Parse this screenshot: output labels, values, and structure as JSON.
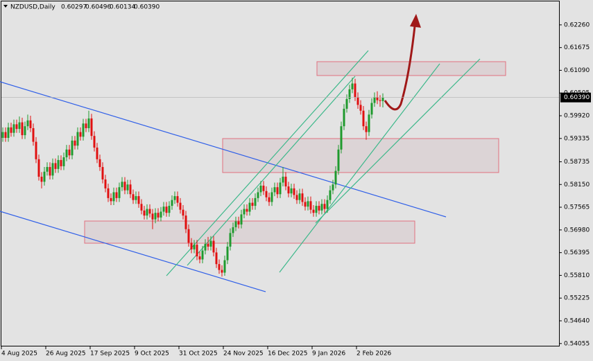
{
  "chart_data": {
    "type": "candlestick",
    "symbol": "NZDUSD,Daily",
    "header_ohlc": [
      "0.60297",
      "0.60496",
      "0.60134",
      "0.60390"
    ],
    "last_price": {
      "value": 0.6039,
      "label": "0.60390"
    },
    "up_color": "#1f9a2e",
    "down_color": "#e01010",
    "ylim": [
      0.5398,
      0.629
    ],
    "yticks": [
      {
        "value": 0.6226,
        "label": "0.62260"
      },
      {
        "value": 0.61675,
        "label": "0.61675"
      },
      {
        "value": 0.6109,
        "label": "0.61090"
      },
      {
        "value": 0.60505,
        "label": "0.60505"
      },
      {
        "value": 0.5992,
        "label": "0.59920"
      },
      {
        "value": 0.59335,
        "label": "0.59335"
      },
      {
        "value": 0.58735,
        "label": "0.58735"
      },
      {
        "value": 0.5815,
        "label": "0.58150"
      },
      {
        "value": 0.57565,
        "label": "0.57565"
      },
      {
        "value": 0.5698,
        "label": "0.56980"
      },
      {
        "value": 0.56395,
        "label": "0.56395"
      },
      {
        "value": 0.5581,
        "label": "0.55810"
      },
      {
        "value": 0.55225,
        "label": "0.55225"
      },
      {
        "value": 0.5464,
        "label": "0.54640"
      },
      {
        "value": 0.54055,
        "label": "0.54055"
      }
    ],
    "categories": [
      "4 Aug 2025",
      null,
      null,
      null,
      null,
      null,
      null,
      null,
      null,
      null,
      null,
      null,
      null,
      null,
      null,
      null,
      "26 Aug 2025",
      null,
      null,
      null,
      null,
      null,
      null,
      null,
      null,
      null,
      null,
      null,
      null,
      null,
      null,
      null,
      "17 Sep 2025",
      null,
      null,
      null,
      null,
      null,
      null,
      null,
      null,
      null,
      null,
      null,
      null,
      null,
      null,
      null,
      "9 Oct 2025",
      null,
      null,
      null,
      null,
      null,
      null,
      null,
      null,
      null,
      null,
      null,
      null,
      null,
      null,
      null,
      "31 Oct 2025",
      null,
      null,
      null,
      null,
      null,
      null,
      null,
      null,
      null,
      null,
      null,
      null,
      null,
      null,
      null,
      "24 Nov 2025",
      null,
      null,
      null,
      null,
      null,
      null,
      null,
      null,
      null,
      null,
      null,
      null,
      null,
      null,
      null,
      "16 Dec 2025",
      null,
      null,
      null,
      null,
      null,
      null,
      null,
      null,
      null,
      null,
      null,
      null,
      null,
      null,
      null,
      "9 Jan 2026",
      null,
      null,
      null,
      null,
      null,
      null,
      null,
      null,
      null,
      null,
      null,
      null,
      null,
      null,
      null,
      "2 Feb 2026",
      null,
      null,
      null,
      null,
      null,
      null,
      null,
      null,
      null
    ],
    "ohlc": [
      [
        0.5935,
        0.5962,
        0.5925,
        0.595
      ],
      [
        0.595,
        0.5962,
        0.5925,
        0.5935
      ],
      [
        0.5935,
        0.5974,
        0.5925,
        0.5962
      ],
      [
        0.5962,
        0.5974,
        0.5938,
        0.5948
      ],
      [
        0.5948,
        0.5982,
        0.5938,
        0.597
      ],
      [
        0.597,
        0.5982,
        0.5948,
        0.5958
      ],
      [
        0.5958,
        0.599,
        0.5948,
        0.5975
      ],
      [
        0.5975,
        0.5987,
        0.5932,
        0.5942
      ],
      [
        0.5942,
        0.5977,
        0.5932,
        0.5965
      ],
      [
        0.5965,
        0.5995,
        0.5955,
        0.598
      ],
      [
        0.598,
        0.5992,
        0.595,
        0.596
      ],
      [
        0.596,
        0.5972,
        0.5915,
        0.5925
      ],
      [
        0.5925,
        0.5937,
        0.587,
        0.588
      ],
      [
        0.588,
        0.5892,
        0.5825,
        0.5835
      ],
      [
        0.5835,
        0.5847,
        0.5805,
        0.5822
      ],
      [
        0.5822,
        0.586,
        0.5812,
        0.5848
      ],
      [
        0.5848,
        0.5872,
        0.5838,
        0.586
      ],
      [
        0.586,
        0.5872,
        0.5828,
        0.5838
      ],
      [
        0.5838,
        0.5882,
        0.5828,
        0.587
      ],
      [
        0.587,
        0.5882,
        0.5845,
        0.5855
      ],
      [
        0.5855,
        0.589,
        0.5845,
        0.5878
      ],
      [
        0.5878,
        0.589,
        0.5852,
        0.5862
      ],
      [
        0.5862,
        0.5897,
        0.5852,
        0.5885
      ],
      [
        0.5885,
        0.5917,
        0.5875,
        0.5905
      ],
      [
        0.5905,
        0.5917,
        0.588,
        0.589
      ],
      [
        0.589,
        0.594,
        0.588,
        0.5928
      ],
      [
        0.5928,
        0.594,
        0.5905,
        0.5915
      ],
      [
        0.5915,
        0.5962,
        0.5905,
        0.595
      ],
      [
        0.595,
        0.5962,
        0.5928,
        0.5938
      ],
      [
        0.5938,
        0.5984,
        0.5928,
        0.5972
      ],
      [
        0.5972,
        0.5984,
        0.595,
        0.596
      ],
      [
        0.596,
        0.6005,
        0.595,
        0.5985
      ],
      [
        0.5985,
        0.5997,
        0.593,
        0.594
      ],
      [
        0.594,
        0.5952,
        0.59,
        0.591
      ],
      [
        0.591,
        0.5922,
        0.587,
        0.588
      ],
      [
        0.588,
        0.5892,
        0.585,
        0.586
      ],
      [
        0.586,
        0.5872,
        0.5818,
        0.5828
      ],
      [
        0.5828,
        0.584,
        0.5795,
        0.5805
      ],
      [
        0.5805,
        0.5817,
        0.577,
        0.578
      ],
      [
        0.578,
        0.5792,
        0.5762,
        0.5772
      ],
      [
        0.5772,
        0.5807,
        0.5762,
        0.5795
      ],
      [
        0.5795,
        0.5807,
        0.577,
        0.578
      ],
      [
        0.578,
        0.582,
        0.577,
        0.5808
      ],
      [
        0.5808,
        0.5834,
        0.5798,
        0.5822
      ],
      [
        0.5822,
        0.5834,
        0.579,
        0.58
      ],
      [
        0.58,
        0.5827,
        0.579,
        0.5815
      ],
      [
        0.5815,
        0.5827,
        0.578,
        0.579
      ],
      [
        0.579,
        0.5802,
        0.5765,
        0.5775
      ],
      [
        0.5775,
        0.5797,
        0.5765,
        0.5785
      ],
      [
        0.5785,
        0.5797,
        0.5755,
        0.5765
      ],
      [
        0.5765,
        0.5777,
        0.5738,
        0.5748
      ],
      [
        0.5748,
        0.576,
        0.5725,
        0.5735
      ],
      [
        0.5735,
        0.5764,
        0.5725,
        0.5752
      ],
      [
        0.5752,
        0.5764,
        0.573,
        0.574
      ],
      [
        0.574,
        0.5752,
        0.57,
        0.5725
      ],
      [
        0.5725,
        0.5754,
        0.5715,
        0.5742
      ],
      [
        0.5742,
        0.5754,
        0.572,
        0.573
      ],
      [
        0.573,
        0.5757,
        0.572,
        0.5745
      ],
      [
        0.5745,
        0.577,
        0.5735,
        0.5758
      ],
      [
        0.5758,
        0.577,
        0.5732,
        0.5742
      ],
      [
        0.5742,
        0.5772,
        0.5732,
        0.576
      ],
      [
        0.576,
        0.5787,
        0.575,
        0.5775
      ],
      [
        0.5775,
        0.5797,
        0.5765,
        0.5785
      ],
      [
        0.5785,
        0.5797,
        0.5758,
        0.5768
      ],
      [
        0.5768,
        0.578,
        0.574,
        0.575
      ],
      [
        0.575,
        0.5762,
        0.5725,
        0.5735
      ],
      [
        0.5735,
        0.5747,
        0.569,
        0.57
      ],
      [
        0.57,
        0.5712,
        0.5655,
        0.5665
      ],
      [
        0.5665,
        0.5677,
        0.5638,
        0.5648
      ],
      [
        0.5648,
        0.5672,
        0.5638,
        0.566
      ],
      [
        0.566,
        0.5672,
        0.562,
        0.563
      ],
      [
        0.563,
        0.5642,
        0.5612,
        0.5622
      ],
      [
        0.5622,
        0.5657,
        0.5612,
        0.5645
      ],
      [
        0.5645,
        0.5674,
        0.5635,
        0.5662
      ],
      [
        0.5662,
        0.568,
        0.5645,
        0.5655
      ],
      [
        0.5655,
        0.5682,
        0.5645,
        0.567
      ],
      [
        0.567,
        0.5682,
        0.563,
        0.564
      ],
      [
        0.564,
        0.5652,
        0.56,
        0.561
      ],
      [
        0.561,
        0.5622,
        0.5585,
        0.5595
      ],
      [
        0.5595,
        0.5607,
        0.5578,
        0.5588
      ],
      [
        0.5588,
        0.5632,
        0.558,
        0.562
      ],
      [
        0.562,
        0.5667,
        0.561,
        0.5655
      ],
      [
        0.5655,
        0.5702,
        0.5645,
        0.569
      ],
      [
        0.569,
        0.5717,
        0.568,
        0.5705
      ],
      [
        0.5705,
        0.5732,
        0.5695,
        0.572
      ],
      [
        0.572,
        0.5732,
        0.5702,
        0.5712
      ],
      [
        0.5712,
        0.575,
        0.5702,
        0.5738
      ],
      [
        0.5738,
        0.5764,
        0.5728,
        0.5752
      ],
      [
        0.5752,
        0.5764,
        0.5735,
        0.5745
      ],
      [
        0.5745,
        0.578,
        0.5735,
        0.5768
      ],
      [
        0.5768,
        0.578,
        0.575,
        0.576
      ],
      [
        0.576,
        0.5792,
        0.575,
        0.578
      ],
      [
        0.578,
        0.5807,
        0.577,
        0.5795
      ],
      [
        0.5795,
        0.5824,
        0.5785,
        0.5812
      ],
      [
        0.5812,
        0.5824,
        0.5788,
        0.5798
      ],
      [
        0.5798,
        0.581,
        0.5772,
        0.5782
      ],
      [
        0.5782,
        0.5794,
        0.576,
        0.577
      ],
      [
        0.577,
        0.5807,
        0.576,
        0.5795
      ],
      [
        0.5795,
        0.582,
        0.5785,
        0.5808
      ],
      [
        0.5808,
        0.582,
        0.578,
        0.579
      ],
      [
        0.579,
        0.5832,
        0.578,
        0.582
      ],
      [
        0.582,
        0.586,
        0.581,
        0.5835
      ],
      [
        0.5835,
        0.5847,
        0.58,
        0.581
      ],
      [
        0.581,
        0.5822,
        0.5782,
        0.5792
      ],
      [
        0.5792,
        0.5817,
        0.5782,
        0.5805
      ],
      [
        0.5805,
        0.5817,
        0.5778,
        0.5788
      ],
      [
        0.5788,
        0.58,
        0.5765,
        0.5775
      ],
      [
        0.5775,
        0.5804,
        0.5765,
        0.5792
      ],
      [
        0.5792,
        0.5804,
        0.576,
        0.577
      ],
      [
        0.577,
        0.5782,
        0.5748,
        0.5758
      ],
      [
        0.5758,
        0.5784,
        0.5748,
        0.5772
      ],
      [
        0.5772,
        0.5784,
        0.574,
        0.575
      ],
      [
        0.575,
        0.5762,
        0.5732,
        0.5742
      ],
      [
        0.5742,
        0.5772,
        0.5732,
        0.576
      ],
      [
        0.576,
        0.5772,
        0.5738,
        0.5748
      ],
      [
        0.5748,
        0.5777,
        0.5738,
        0.5765
      ],
      [
        0.5765,
        0.5777,
        0.5742,
        0.5752
      ],
      [
        0.5752,
        0.5787,
        0.5742,
        0.5775
      ],
      [
        0.5775,
        0.5812,
        0.5765,
        0.58
      ],
      [
        0.58,
        0.5827,
        0.579,
        0.5815
      ],
      [
        0.5815,
        0.5862,
        0.5805,
        0.585
      ],
      [
        0.585,
        0.5917,
        0.584,
        0.5905
      ],
      [
        0.5905,
        0.5977,
        0.5895,
        0.5965
      ],
      [
        0.5965,
        0.6022,
        0.5955,
        0.601
      ],
      [
        0.601,
        0.6047,
        0.6,
        0.6035
      ],
      [
        0.6035,
        0.6072,
        0.6025,
        0.606
      ],
      [
        0.606,
        0.609,
        0.605,
        0.6075
      ],
      [
        0.6075,
        0.6087,
        0.603,
        0.604
      ],
      [
        0.604,
        0.6052,
        0.601,
        0.602
      ],
      [
        0.602,
        0.6032,
        0.5995,
        0.6005
      ],
      [
        0.6005,
        0.6017,
        0.5955,
        0.5965
      ],
      [
        0.5965,
        0.5977,
        0.593,
        0.595
      ],
      [
        0.595,
        0.6007,
        0.594,
        0.5995
      ],
      [
        0.5995,
        0.6037,
        0.5985,
        0.6025
      ],
      [
        0.6025,
        0.6052,
        0.6015,
        0.604
      ],
      [
        0.604,
        0.6055,
        0.6022,
        0.6032
      ],
      [
        0.6032,
        0.6045,
        0.6015,
        0.603
      ],
      [
        0.60297,
        0.60496,
        0.60134,
        0.6039
      ]
    ]
  }
}
